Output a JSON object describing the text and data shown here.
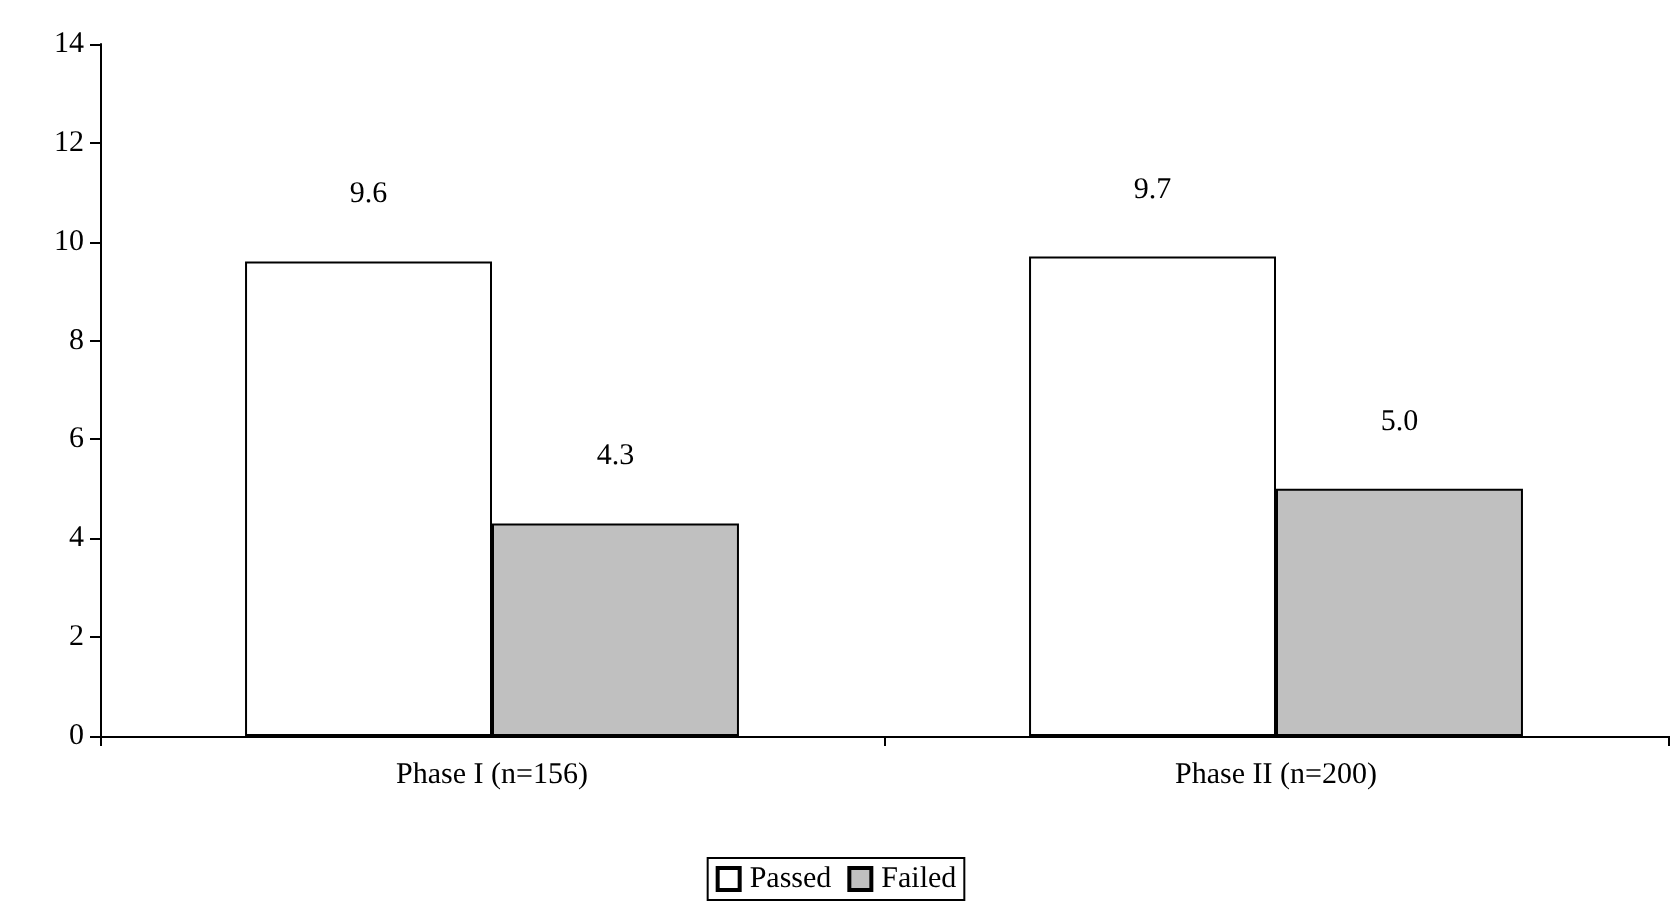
{
  "chart_data": {
    "type": "bar",
    "categories": [
      "Phase I (n=156)",
      "Phase II (n=200)"
    ],
    "series": [
      {
        "name": "Passed",
        "color": "#ffffff",
        "values": [
          9.6,
          9.7
        ]
      },
      {
        "name": "Failed",
        "color": "#c0c0c0",
        "values": [
          4.3,
          5.0
        ]
      }
    ],
    "value_labels": [
      [
        "9.6",
        "9.7"
      ],
      [
        "4.3",
        "5.0"
      ]
    ],
    "ylim": [
      0,
      14
    ],
    "yticks": [
      0,
      2,
      4,
      6,
      8,
      10,
      12,
      14
    ],
    "grid": false,
    "legend": "bottom"
  }
}
